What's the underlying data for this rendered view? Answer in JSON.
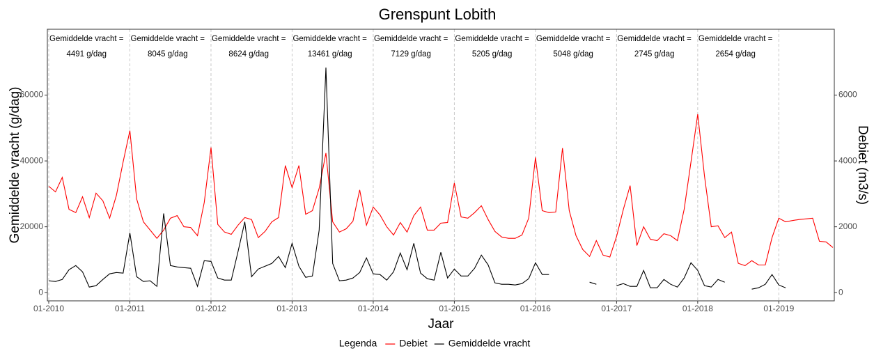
{
  "chart_data": {
    "type": "line",
    "title": "Grenspunt Lobith",
    "x_label": "Jaar",
    "y_label": "Gemiddelde vracht (g/dag)",
    "y2_label": "Debiet (m3/s)",
    "x": [
      "01-2010",
      "02-2010",
      "03-2010",
      "04-2010",
      "05-2010",
      "06-2010",
      "07-2010",
      "08-2010",
      "09-2010",
      "10-2010",
      "11-2010",
      "12-2010",
      "01-2011",
      "02-2011",
      "03-2011",
      "04-2011",
      "05-2011",
      "06-2011",
      "07-2011",
      "08-2011",
      "09-2011",
      "10-2011",
      "11-2011",
      "12-2011",
      "01-2012",
      "02-2012",
      "03-2012",
      "04-2012",
      "05-2012",
      "06-2012",
      "07-2012",
      "08-2012",
      "09-2012",
      "10-2012",
      "11-2012",
      "12-2012",
      "01-2013",
      "02-2013",
      "03-2013",
      "04-2013",
      "05-2013",
      "06-2013",
      "07-2013",
      "08-2013",
      "09-2013",
      "10-2013",
      "11-2013",
      "12-2013",
      "01-2014",
      "02-2014",
      "03-2014",
      "04-2014",
      "05-2014",
      "06-2014",
      "07-2014",
      "08-2014",
      "09-2014",
      "10-2014",
      "11-2014",
      "12-2014",
      "01-2015",
      "02-2015",
      "03-2015",
      "04-2015",
      "05-2015",
      "06-2015",
      "07-2015",
      "08-2015",
      "09-2015",
      "10-2015",
      "11-2015",
      "12-2015",
      "01-2016",
      "02-2016",
      "03-2016",
      "04-2016",
      "05-2016",
      "06-2016",
      "07-2016",
      "08-2016",
      "09-2016",
      "10-2016",
      "11-2016",
      "12-2016",
      "01-2017",
      "02-2017",
      "03-2017",
      "04-2017",
      "05-2017",
      "06-2017",
      "07-2017",
      "08-2017",
      "09-2017",
      "10-2017",
      "11-2017",
      "12-2017",
      "01-2018",
      "02-2018",
      "03-2018",
      "04-2018",
      "05-2018",
      "06-2018",
      "07-2018",
      "08-2018",
      "09-2018",
      "10-2018",
      "11-2018",
      "12-2018",
      "01-2019",
      "02-2019",
      "03-2019",
      "04-2019",
      "05-2019",
      "06-2019",
      "07-2019",
      "08-2019",
      "09-2019"
    ],
    "series": [
      {
        "name": "Debiet",
        "color": "#ff0000",
        "axis": "y2",
        "values": [
          3230,
          3060,
          3500,
          2530,
          2430,
          2910,
          2280,
          3020,
          2790,
          2260,
          2950,
          3970,
          4920,
          2850,
          2150,
          1900,
          1650,
          1900,
          2260,
          2340,
          2000,
          1980,
          1730,
          2740,
          4410,
          2070,
          1840,
          1770,
          2050,
          2280,
          2220,
          1670,
          1860,
          2150,
          2280,
          3860,
          3190,
          3860,
          2380,
          2490,
          3170,
          4240,
          2150,
          1840,
          1940,
          2170,
          3120,
          2050,
          2600,
          2360,
          2000,
          1750,
          2130,
          1840,
          2340,
          2600,
          1900,
          1900,
          2110,
          2130,
          3330,
          2300,
          2260,
          2430,
          2640,
          2220,
          1860,
          1690,
          1650,
          1650,
          1750,
          2260,
          4110,
          2490,
          2430,
          2450,
          4390,
          2490,
          1730,
          1310,
          1100,
          1580,
          1140,
          1080,
          1710,
          2530,
          3250,
          1430,
          2000,
          1620,
          1580,
          1790,
          1730,
          1580,
          2530,
          3970,
          5420,
          3540,
          2000,
          2030,
          1670,
          1840,
          890,
          820,
          970,
          840,
          840,
          1670,
          2260,
          2150,
          2190,
          2220,
          2240,
          2260,
          1560,
          1540,
          1370
        ]
      },
      {
        "name": "Gemiddelde vracht",
        "color": "#000000",
        "values": [
          3590,
          3380,
          4000,
          6960,
          8230,
          6330,
          1690,
          2110,
          4000,
          5700,
          6120,
          5910,
          18150,
          4850,
          3380,
          3590,
          1900,
          24050,
          8230,
          7810,
          7600,
          7390,
          1900,
          9710,
          9500,
          4430,
          3800,
          3800,
          12450,
          21520,
          4850,
          7170,
          8020,
          8860,
          10970,
          7600,
          14980,
          8020,
          4640,
          5060,
          18990,
          68360,
          8860,
          3590,
          3800,
          4430,
          6120,
          10550,
          5700,
          5490,
          3800,
          6330,
          12030,
          6960,
          14980,
          5910,
          4220,
          3800,
          12240,
          4430,
          7170,
          5060,
          5060,
          7390,
          11390,
          8440,
          2950,
          2530,
          2530,
          2320,
          2740,
          4220,
          9070,
          5490,
          5490,
          null,
          null,
          null,
          null,
          null,
          3170,
          2530,
          null,
          null,
          2110,
          2740,
          1900,
          1900,
          6750,
          1480,
          1480,
          4000,
          2530,
          1690,
          4430,
          9070,
          6750,
          2110,
          1690,
          4000,
          3170,
          null,
          null,
          null,
          1060,
          1480,
          2530,
          5490,
          2320,
          1480,
          null,
          null,
          null,
          null,
          null,
          null,
          null
        ]
      }
    ],
    "xlim": [
      "01-2010",
      "09-2019"
    ],
    "xticks": [
      "01-2010",
      "01-2011",
      "01-2012",
      "01-2013",
      "01-2014",
      "01-2015",
      "01-2016",
      "01-2017",
      "01-2018",
      "01-2019"
    ],
    "ylim": [
      -2500,
      80000
    ],
    "yticks": [
      0,
      20000,
      40000,
      60000
    ],
    "y2lim": [
      -250,
      8000
    ],
    "y2ticks": [
      0,
      2000,
      4000,
      6000
    ],
    "grid": true,
    "legend_title": "Legenda",
    "legend_position": "bottom",
    "annotations": [
      {
        "line1": "Gemiddelde vracht =",
        "line2": "4491 g/dag"
      },
      {
        "line1": "Gemiddelde vracht =",
        "line2": "8045 g/dag"
      },
      {
        "line1": "Gemiddelde vracht =",
        "line2": "8624 g/dag"
      },
      {
        "line1": "Gemiddelde vracht =",
        "line2": "13461 g/dag"
      },
      {
        "line1": "Gemiddelde vracht =",
        "line2": "7129 g/dag"
      },
      {
        "line1": "Gemiddelde vracht =",
        "line2": "5205 g/dag"
      },
      {
        "line1": "Gemiddelde vracht =",
        "line2": "5048 g/dag"
      },
      {
        "line1": "Gemiddelde vracht =",
        "line2": "2745 g/dag"
      },
      {
        "line1": "Gemiddelde vracht =",
        "line2": "2654 g/dag"
      }
    ]
  }
}
